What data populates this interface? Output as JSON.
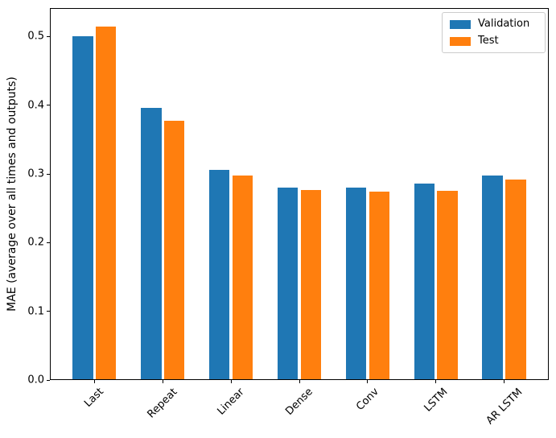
{
  "chart_data": {
    "type": "bar",
    "title": "",
    "xlabel": "",
    "ylabel": "MAE (average over all times and outputs)",
    "categories": [
      "Last",
      "Repeat",
      "Linear",
      "Dense",
      "Conv",
      "LSTM",
      "AR LSTM"
    ],
    "series": [
      {
        "name": "Validation",
        "color": "#1f77b4",
        "values": [
          0.501,
          0.396,
          0.306,
          0.28,
          0.28,
          0.286,
          0.298
        ]
      },
      {
        "name": "Test",
        "color": "#ff7f0e",
        "values": [
          0.515,
          0.377,
          0.298,
          0.277,
          0.274,
          0.276,
          0.292
        ]
      }
    ],
    "ylim": [
      0,
      0.5415
    ],
    "yticks": [
      0.0,
      0.1,
      0.2,
      0.3,
      0.4,
      0.5
    ],
    "ytick_labels": [
      "0.0",
      "0.1",
      "0.2",
      "0.3",
      "0.4",
      "0.5"
    ],
    "xtick_rotation_deg": 45,
    "grid": false,
    "legend": {
      "position": "upper right",
      "entries": [
        "Validation",
        "Test"
      ]
    },
    "bar_width_units": 0.3,
    "bar_offset_units": 0.17
  }
}
